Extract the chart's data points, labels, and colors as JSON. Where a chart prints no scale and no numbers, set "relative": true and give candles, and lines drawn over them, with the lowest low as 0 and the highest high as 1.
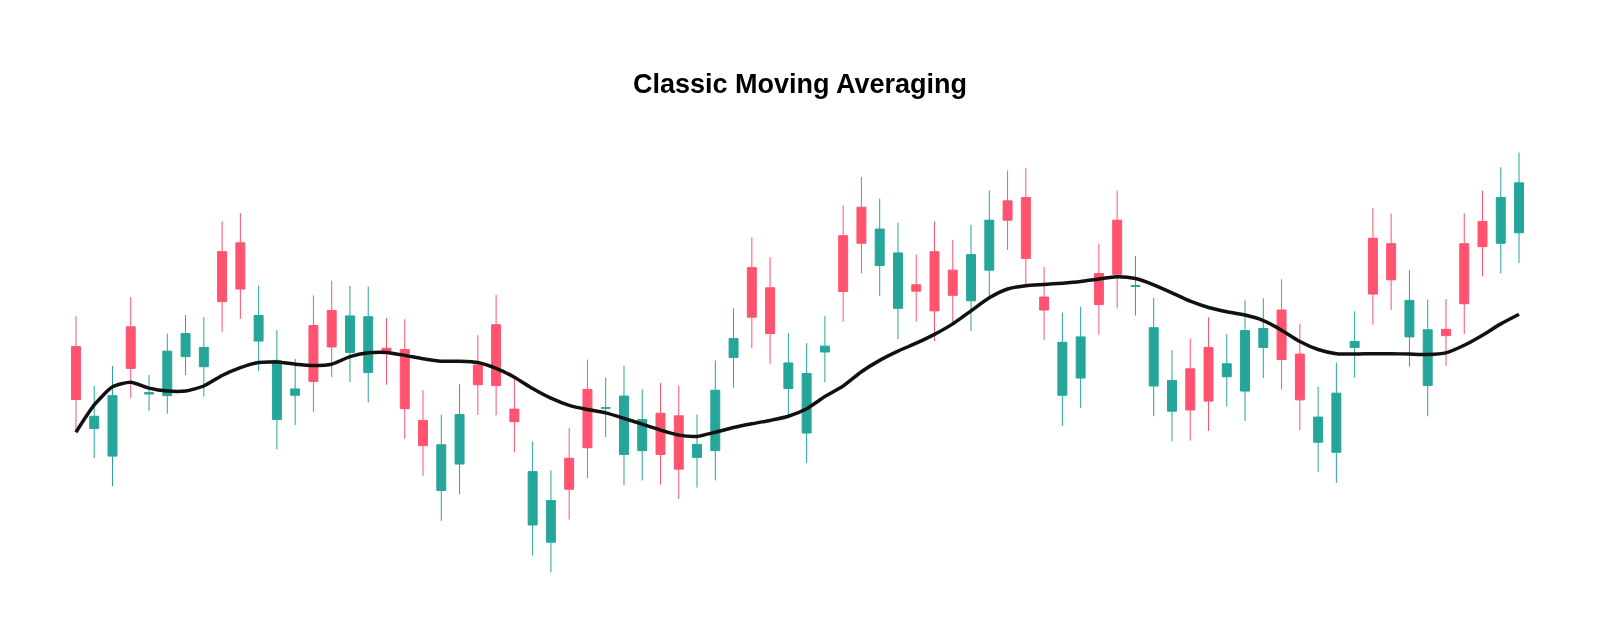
{
  "chart_data": {
    "type": "candlestick",
    "title": "Classic Moving Averaging",
    "relative": true,
    "categories": [
      null,
      null,
      null,
      null,
      null,
      null,
      null,
      null,
      null,
      null,
      null,
      null,
      null,
      null,
      null,
      null,
      null,
      null,
      null,
      null,
      null,
      null,
      null,
      null,
      null,
      null,
      null,
      null,
      null,
      null,
      null,
      null,
      null,
      null,
      null,
      null,
      null,
      null,
      null,
      null,
      null,
      null,
      null,
      null,
      null,
      null,
      null,
      null,
      null,
      null,
      null,
      null,
      null,
      null,
      null,
      null,
      null,
      null,
      null,
      null,
      null,
      null,
      null,
      null,
      null,
      null,
      null,
      null,
      null,
      null,
      null,
      null,
      null,
      null,
      null,
      null,
      null,
      null,
      null,
      null
    ],
    "series": [
      {
        "ohlc": [
          [
            0.538,
            0.61,
            0.337,
            0.412
          ],
          [
            0.343,
            0.444,
            0.272,
            0.372
          ],
          [
            0.277,
            0.492,
            0.205,
            0.421
          ],
          [
            0.585,
            0.656,
            0.415,
            0.486
          ],
          [
            0.425,
            0.47,
            0.385,
            0.428
          ],
          [
            0.421,
            0.569,
            0.378,
            0.527
          ],
          [
            0.514,
            0.613,
            0.47,
            0.569
          ],
          [
            0.49,
            0.608,
            0.419,
            0.536
          ],
          [
            0.764,
            0.836,
            0.573,
            0.645
          ],
          [
            0.785,
            0.856,
            0.604,
            0.675
          ],
          [
            0.551,
            0.683,
            0.48,
            0.612
          ],
          [
            0.364,
            0.577,
            0.293,
            0.505
          ],
          [
            0.422,
            0.509,
            0.351,
            0.437
          ],
          [
            0.588,
            0.66,
            0.382,
            0.455
          ],
          [
            0.624,
            0.695,
            0.465,
            0.537
          ],
          [
            0.524,
            0.683,
            0.453,
            0.611
          ],
          [
            0.476,
            0.681,
            0.405,
            0.609
          ],
          [
            0.534,
            0.606,
            0.447,
            0.527
          ],
          [
            0.531,
            0.603,
            0.318,
            0.39
          ],
          [
            0.362,
            0.434,
            0.23,
            0.302
          ],
          [
            0.195,
            0.376,
            0.123,
            0.304
          ],
          [
            0.258,
            0.448,
            0.186,
            0.376
          ],
          [
            0.494,
            0.565,
            0.375,
            0.447
          ],
          [
            0.59,
            0.661,
            0.374,
            0.445
          ],
          [
            0.389,
            0.461,
            0.286,
            0.359
          ],
          [
            0.113,
            0.312,
            0.04,
            0.24
          ],
          [
            0.072,
            0.243,
            0,
            0.171
          ],
          [
            0.272,
            0.344,
            0.126,
            0.198
          ],
          [
            0.436,
            0.507,
            0.225,
            0.297
          ],
          [
            0.391,
            0.464,
            0.322,
            0.392
          ],
          [
            0.281,
            0.492,
            0.208,
            0.42
          ],
          [
            0.29,
            0.436,
            0.219,
            0.364
          ],
          [
            0.379,
            0.451,
            0.209,
            0.281
          ],
          [
            0.373,
            0.445,
            0.175,
            0.246
          ],
          [
            0.274,
            0.376,
            0.202,
            0.305
          ],
          [
            0.29,
            0.505,
            0.219,
            0.434
          ],
          [
            0.512,
            0.629,
            0.44,
            0.557
          ],
          [
            0.726,
            0.798,
            0.534,
            0.608
          ],
          [
            0.678,
            0.751,
            0.497,
            0.569
          ],
          [
            0.438,
            0.57,
            0.372,
            0.499
          ],
          [
            0.332,
            0.546,
            0.261,
            0.474
          ],
          [
            0.525,
            0.611,
            0.453,
            0.539
          ],
          [
            0.802,
            0.874,
            0.597,
            0.669
          ],
          [
            0.87,
            0.942,
            0.712,
            0.784
          ],
          [
            0.731,
            0.89,
            0.659,
            0.818
          ],
          [
            0.629,
            0.833,
            0.556,
            0.761
          ],
          [
            0.685,
            0.757,
            0.598,
            0.67
          ],
          [
            0.764,
            0.836,
            0.551,
            0.623
          ],
          [
            0.72,
            0.792,
            0.596,
            0.66
          ],
          [
            0.647,
            0.828,
            0.575,
            0.757
          ],
          [
            0.72,
            0.91,
            0.654,
            0.839
          ],
          [
            0.885,
            0.957,
            0.768,
            0.839
          ],
          [
            0.893,
            0.964,
            0.679,
            0.748
          ],
          [
            0.656,
            0.727,
            0.554,
            0.625
          ],
          [
            0.422,
            0.619,
            0.349,
            0.548
          ],
          [
            0.463,
            0.633,
            0.392,
            0.561
          ],
          [
            0.712,
            0.783,
            0.566,
            0.638
          ],
          [
            0.839,
            0.91,
            0.629,
            0.71
          ],
          [
            0.681,
            0.754,
            0.612,
            0.683
          ],
          [
            0.444,
            0.654,
            0.372,
            0.583
          ],
          [
            0.384,
            0.529,
            0.312,
            0.457
          ],
          [
            0.485,
            0.557,
            0.314,
            0.387
          ],
          [
            0.536,
            0.608,
            0.337,
            0.408
          ],
          [
            0.466,
            0.568,
            0.395,
            0.497
          ],
          [
            0.432,
            0.648,
            0.361,
            0.576
          ],
          [
            0.536,
            0.653,
            0.463,
            0.581
          ],
          [
            0.625,
            0.698,
            0.436,
            0.507
          ],
          [
            0.52,
            0.592,
            0.339,
            0.411
          ],
          [
            0.31,
            0.442,
            0.239,
            0.37
          ],
          [
            0.286,
            0.5,
            0.213,
            0.427
          ],
          [
            0.536,
            0.622,
            0.464,
            0.55
          ],
          [
            0.796,
            0.868,
            0.59,
            0.663
          ],
          [
            0.783,
            0.855,
            0.625,
            0.697
          ],
          [
            0.561,
            0.72,
            0.49,
            0.648
          ],
          [
            0.445,
            0.65,
            0.372,
            0.578
          ],
          [
            0.579,
            0.651,
            0.492,
            0.564
          ],
          [
            0.783,
            0.855,
            0.568,
            0.64
          ],
          [
            0.836,
            0.909,
            0.705,
            0.776
          ],
          [
            0.784,
            0.965,
            0.712,
            0.893
          ],
          [
            0.809,
            1,
            0.737,
            0.928
          ]
        ],
        "colors": [
          "#ff5370",
          "#26a69a",
          "#26a69a",
          "#ff5370",
          "#26a69a",
          "#26a69a",
          "#26a69a",
          "#26a69a",
          "#ff5370",
          "#ff5370",
          "#26a69a",
          "#26a69a",
          "#26a69a",
          "#ff5370",
          "#ff5370",
          "#26a69a",
          "#26a69a",
          "#ff5370",
          "#ff5370",
          "#ff5370",
          "#26a69a",
          "#26a69a",
          "#ff5370",
          "#ff5370",
          "#ff5370",
          "#26a69a",
          "#26a69a",
          "#ff5370",
          "#ff5370",
          "#26a69a",
          "#26a69a",
          "#26a69a",
          "#ff5370",
          "#ff5370",
          "#26a69a",
          "#26a69a",
          "#26a69a",
          "#ff5370",
          "#ff5370",
          "#26a69a",
          "#26a69a",
          "#26a69a",
          "#ff5370",
          "#ff5370",
          "#26a69a",
          "#26a69a",
          "#ff5370",
          "#ff5370",
          "#ff5370",
          "#26a69a",
          "#26a69a",
          "#ff5370",
          "#ff5370",
          "#ff5370",
          "#26a69a",
          "#26a69a",
          "#ff5370",
          "#ff5370",
          "#26a69a",
          "#26a69a",
          "#26a69a",
          "#ff5370",
          "#ff5370",
          "#26a69a",
          "#26a69a",
          "#26a69a",
          "#ff5370",
          "#ff5370",
          "#26a69a",
          "#26a69a",
          "#26a69a",
          "#ff5370",
          "#ff5370",
          "#26a69a",
          "#26a69a",
          "#ff5370",
          "#ff5370",
          "#ff5370",
          "#26a69a",
          "#26a69a"
        ]
      },
      {
        "type": "line",
        "color": "#111111",
        "values": [
          0.334,
          0.399,
          0.442,
          0.453,
          0.439,
          0.432,
          0.432,
          0.444,
          0.469,
          0.488,
          0.5,
          0.501,
          0.496,
          0.493,
          0.496,
          0.514,
          0.523,
          0.524,
          0.517,
          0.509,
          0.503,
          0.503,
          0.5,
          0.486,
          0.465,
          0.438,
          0.415,
          0.398,
          0.388,
          0.38,
          0.367,
          0.353,
          0.339,
          0.327,
          0.324,
          0.334,
          0.345,
          0.354,
          0.362,
          0.372,
          0.39,
          0.419,
          0.444,
          0.478,
          0.505,
          0.527,
          0.546,
          0.567,
          0.592,
          0.623,
          0.654,
          0.675,
          0.683,
          0.686,
          0.689,
          0.693,
          0.699,
          0.704,
          0.7,
          0.685,
          0.666,
          0.646,
          0.631,
          0.621,
          0.613,
          0.6,
          0.577,
          0.55,
          0.531,
          0.521,
          0.52,
          0.521,
          0.521,
          0.52,
          0.519,
          0.523,
          0.541,
          0.565,
          0.592,
          0.615
        ]
      }
    ]
  }
}
